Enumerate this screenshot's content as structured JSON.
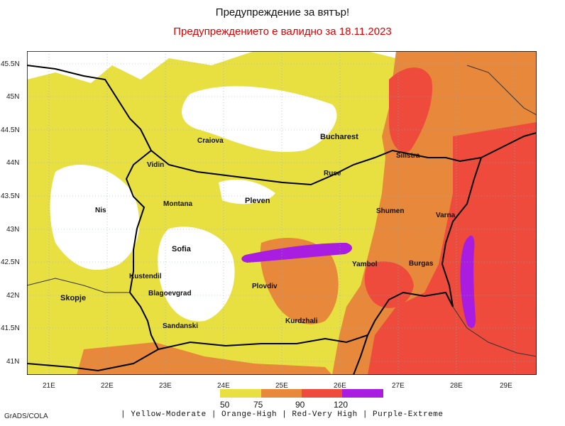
{
  "header": {
    "title": "Предупреждение за вятър!",
    "subtitle": "Предупреждението е валидно за 18.11.2023"
  },
  "map": {
    "lat_labels": [
      "45.5N",
      "45N",
      "44.5N",
      "44N",
      "43.5N",
      "43N",
      "42.5N",
      "42N",
      "41.5N",
      "41N"
    ],
    "lon_labels": [
      "21E",
      "22E",
      "23E",
      "24E",
      "25E",
      "26E",
      "27E",
      "28E",
      "29E"
    ],
    "cities": [
      {
        "name": "Bucharest"
      },
      {
        "name": "Craiova"
      },
      {
        "name": "Silistra"
      },
      {
        "name": "Vidin"
      },
      {
        "name": "Ruse"
      },
      {
        "name": "Nis"
      },
      {
        "name": "Montana"
      },
      {
        "name": "Pleven"
      },
      {
        "name": "Shumen"
      },
      {
        "name": "Varna"
      },
      {
        "name": "Sofia"
      },
      {
        "name": "Yambol"
      },
      {
        "name": "Burgas"
      },
      {
        "name": "Kustendil"
      },
      {
        "name": "Blagoevgrad"
      },
      {
        "name": "Plovdiv"
      },
      {
        "name": "Skopje"
      },
      {
        "name": "Kurdzhali"
      },
      {
        "name": "Sandanski"
      }
    ],
    "colors": {
      "yellow": "#e8e040",
      "orange": "#e8883a",
      "red": "#ef4b3c",
      "purple": "#a81de0"
    }
  },
  "legend": {
    "values": [
      "50",
      "75",
      "90",
      "120"
    ],
    "description": "| Yellow-Moderate | Orange-High | Red-Very High | Purple-Extreme"
  },
  "credit": "GrADS/COLA"
}
